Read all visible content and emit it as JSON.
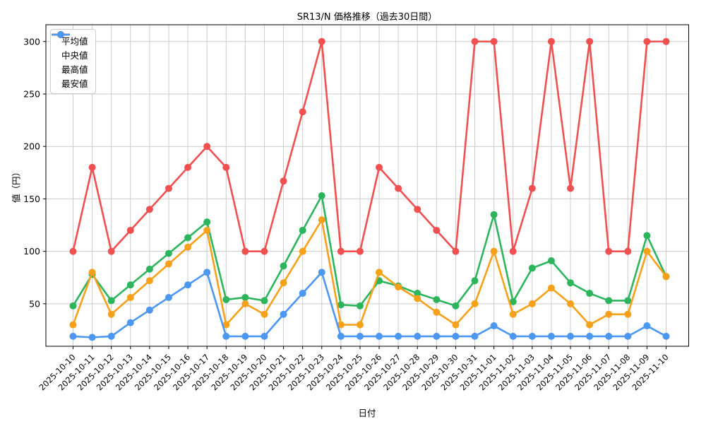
{
  "chart_data": {
    "type": "line",
    "title": "SR13/N 価格推移（過去30日間）",
    "xlabel": "日付",
    "ylabel": "値（円）",
    "categories": [
      "2025-10-10",
      "2025-10-11",
      "2025-10-12",
      "2025-10-13",
      "2025-10-14",
      "2025-10-15",
      "2025-10-16",
      "2025-10-17",
      "2025-10-18",
      "2025-10-19",
      "2025-10-20",
      "2025-10-21",
      "2025-10-22",
      "2025-10-23",
      "2025-10-24",
      "2025-10-25",
      "2025-10-26",
      "2025-10-27",
      "2025-10-28",
      "2025-10-29",
      "2025-10-30",
      "2025-10-31",
      "2025-11-01",
      "2025-11-02",
      "2025-11-03",
      "2025-11-04",
      "2025-11-05",
      "2025-11-06",
      "2025-11-07",
      "2025-11-08",
      "2025-11-09",
      "2025-11-10"
    ],
    "series": [
      {
        "key": "avg",
        "name": "平均値",
        "color": "#2db55d",
        "values": [
          48,
          78,
          53,
          68,
          83,
          98,
          113,
          128,
          54,
          56,
          53,
          86,
          120,
          153,
          49,
          48,
          72,
          67,
          60,
          54,
          48,
          72,
          135,
          52,
          84,
          91,
          70,
          60,
          53,
          53,
          115,
          76
        ]
      },
      {
        "key": "median",
        "name": "中央値",
        "color": "#f7a11a",
        "values": [
          30,
          80,
          40,
          56,
          72,
          88,
          104,
          120,
          30,
          50,
          40,
          70,
          100,
          130,
          30,
          30,
          80,
          66,
          55,
          42,
          30,
          50,
          100,
          40,
          50,
          65,
          50,
          30,
          40,
          40,
          100,
          76
        ]
      },
      {
        "key": "max",
        "name": "最高値",
        "color": "#f15050",
        "values": [
          100,
          180,
          100,
          120,
          140,
          160,
          180,
          200,
          180,
          100,
          100,
          167,
          233,
          300,
          100,
          100,
          180,
          160,
          140,
          120,
          100,
          300,
          300,
          100,
          160,
          300,
          160,
          300,
          100,
          100,
          300,
          300
        ]
      },
      {
        "key": "min",
        "name": "最安値",
        "color": "#4c97f2",
        "values": [
          19,
          18,
          19,
          32,
          44,
          56,
          68,
          80,
          19,
          19,
          19,
          40,
          60,
          80,
          19,
          19,
          19,
          19,
          19,
          19,
          19,
          19,
          29,
          19,
          19,
          19,
          19,
          19,
          19,
          19,
          29,
          19
        ]
      }
    ],
    "ylim": [
      9.5,
      316
    ],
    "yticks": [
      50,
      100,
      150,
      200,
      250,
      300
    ],
    "grid": true,
    "legend_position": "upper-left",
    "axis_color": "#000000",
    "grid_color": "#cccccc"
  }
}
